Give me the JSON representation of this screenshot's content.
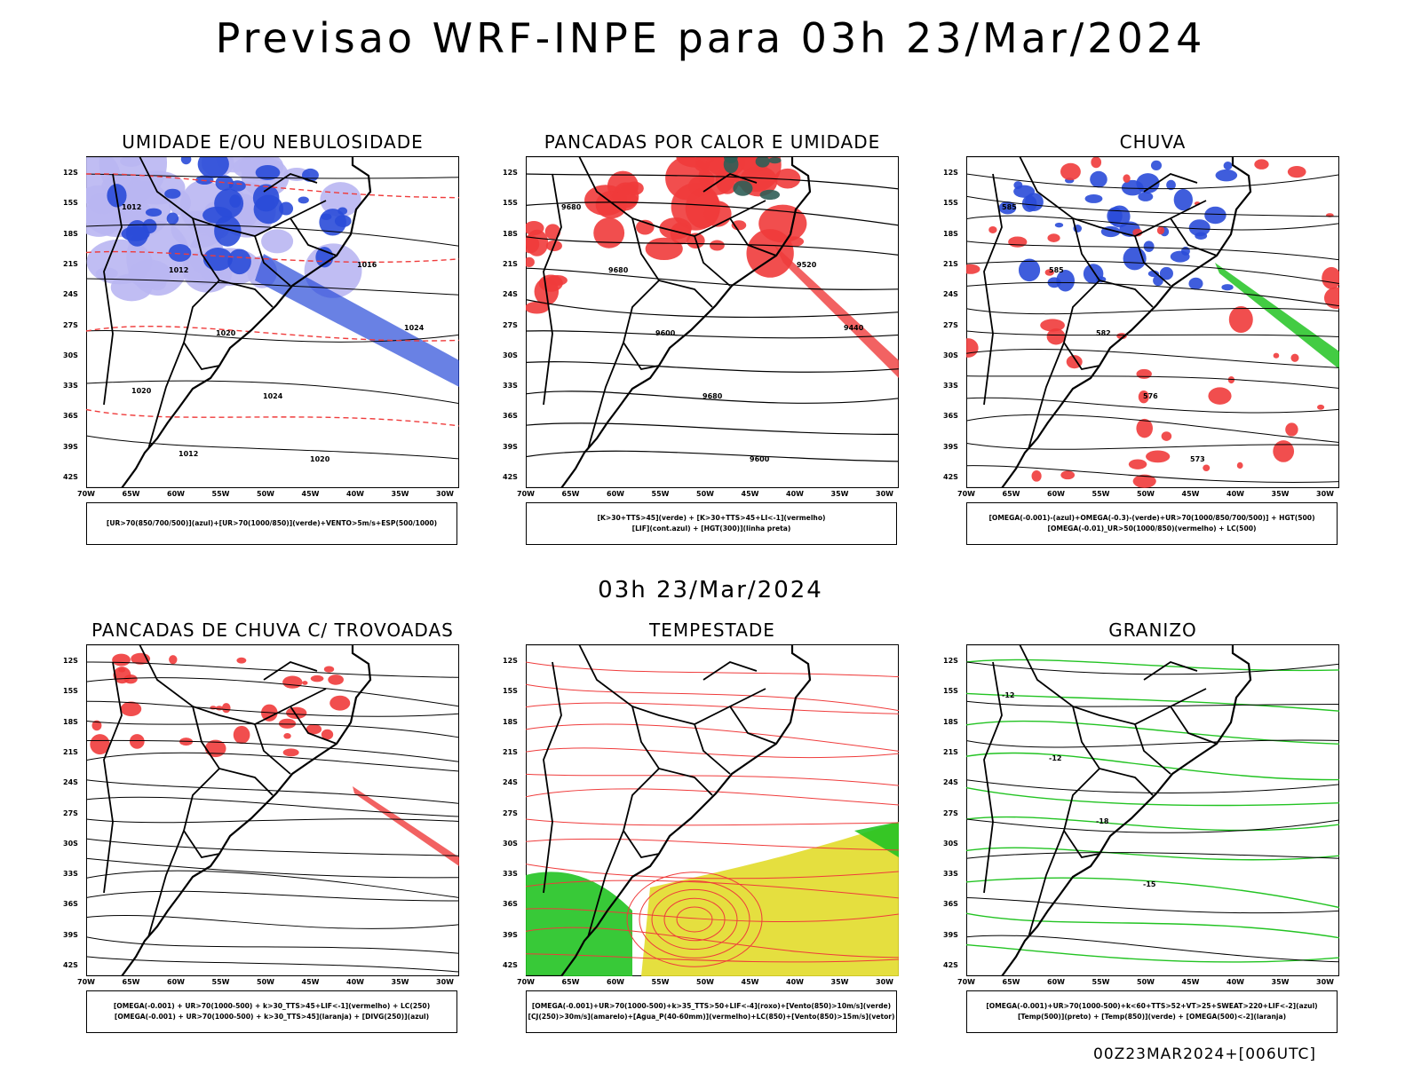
{
  "title": "Previsao WRF-INPE  para 03h 23/Mar/2024",
  "subtitle": "03h 23/Mar/2024",
  "footer": "00Z23MAR2024+[006UTC]",
  "axes": {
    "lat": [
      "12S",
      "15S",
      "18S",
      "21S",
      "24S",
      "27S",
      "30S",
      "33S",
      "36S",
      "39S",
      "42S"
    ],
    "lon": [
      "70W",
      "65W",
      "60W",
      "55W",
      "50W",
      "45W",
      "40W",
      "35W",
      "30W"
    ]
  },
  "colors": {
    "blue": "#2a4bd8",
    "lightblue": "#b9b6f2",
    "green": "#22c322",
    "red": "#ef3b3b",
    "darkgreen": "#2f5e57",
    "yellow": "#e2dc2a",
    "orange": "#e0822a"
  },
  "panels": [
    {
      "id": "umidade",
      "title": "UMIDADE E/OU NEBULOSIDADE",
      "legend": [
        "[UR>70(850/700/500)](azul)+[UR>70(1000/850)](verde)+VENTO>5m/s+ESP(500/1000)"
      ],
      "labels": [
        "1012",
        "1012",
        "1020",
        "1024",
        "1020",
        "1016",
        "1024",
        "1020",
        "1012"
      ]
    },
    {
      "id": "pancadas",
      "title": "PANCADAS POR CALOR E UMIDADE",
      "legend": [
        "[K>30+TTS>45](verde) + [K>30+TTS>45+LI<-1](vermelho)",
        "[LIF](cont.azul) + [HGT(300)](linha preta)"
      ],
      "labels": [
        "9680",
        "9680",
        "9600",
        "9680",
        "9600",
        "9520",
        "9440"
      ]
    },
    {
      "id": "chuva",
      "title": "CHUVA",
      "legend": [
        "[OMEGA(-0.001)-(azul)+OMEGA(-0.3)-(verde)+UR>70(1000/850/700/500)] + HGT(500)",
        "[OMEGA(-0.01)_UR>50(1000/850)(vermelho) + LC(500)"
      ],
      "labels": [
        "585",
        "585",
        "582",
        "576",
        "573"
      ]
    },
    {
      "id": "trovoadas",
      "title": "PANCADAS DE CHUVA C/ TROVOADAS",
      "legend": [
        "[OMEGA(-0.001) + UR>70(1000-500) + k>30_TTS>45+LIF<-1](vermelho) + LC(250)",
        "[OMEGA(-0.001) + UR>70(1000-500) + k>30_TTS>45](laranja) + [DIVG(250)](azul)"
      ],
      "labels": []
    },
    {
      "id": "tempestade",
      "title": "TEMPESTADE",
      "legend": [
        "[OMEGA(-0.001)+UR>70(1000-500)+k>35_TTS>50+LIF<-4](roxo)+[Vento(850)>10m/s](verde)",
        "[CJ(250)>30m/s](amarelo)+[Agua_P(40-60mm)](vermelho)+LC(850)+[Vento(850)>15m/s](vetor)"
      ],
      "labels": []
    },
    {
      "id": "granizo",
      "title": "GRANIZO",
      "legend": [
        "[OMEGA(-0.001)+UR>70(1000-500)+k<60+TTS>52+VT>25+SWEAT>220+LIF<-2](azul)",
        "[Temp(500)](preto) + [Temp(850)](verde) + [OMEGA(500)<-2](laranja)"
      ],
      "labels": [
        "-12",
        "-12",
        "-18",
        "-15"
      ]
    }
  ]
}
